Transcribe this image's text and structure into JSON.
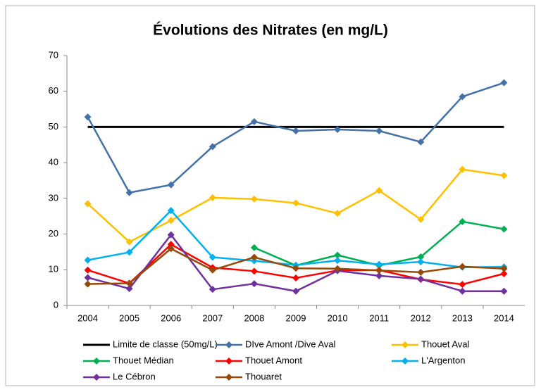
{
  "chart_data": {
    "type": "line",
    "title": "Évolutions des Nitrates (en mg/L)",
    "categories": [
      "2004",
      "2005",
      "2006",
      "2007",
      "2008",
      "2009",
      "2010",
      "2011",
      "2012",
      "2013",
      "2014"
    ],
    "ylim": [
      0,
      70
    ],
    "yticks": [
      0,
      10,
      20,
      30,
      40,
      50,
      60,
      70
    ],
    "grid": false,
    "legend": "bottom",
    "series": [
      {
        "name": "Limite de classe (50mg/L)",
        "color": "#000000",
        "marker": "none",
        "values": [
          50,
          50,
          50,
          50,
          50,
          50,
          50,
          50,
          50,
          50,
          50
        ]
      },
      {
        "name": "DIve Amont /Dive Aval",
        "color": "#4472a8",
        "marker": "diamond",
        "values": [
          52.8,
          31.6,
          33.8,
          44.5,
          51.5,
          48.9,
          49.3,
          48.9,
          45.8,
          58.5,
          62.4
        ]
      },
      {
        "name": "Thouet Aval",
        "color": "#ffc000",
        "marker": "diamond",
        "values": [
          28.5,
          17.8,
          23.8,
          30.2,
          29.8,
          28.7,
          25.8,
          32.2,
          24.1,
          38.1,
          36.4
        ]
      },
      {
        "name": "Thouet Médian",
        "color": "#00b050",
        "marker": "diamond",
        "values": [
          null,
          null,
          null,
          null,
          16.2,
          11.2,
          14.1,
          11.2,
          13.6,
          23.5,
          21.4
        ]
      },
      {
        "name": "Thouet Amont",
        "color": "#ff0000",
        "marker": "diamond",
        "values": [
          9.9,
          6.2,
          17.1,
          10.6,
          9.6,
          7.7,
          9.8,
          9.9,
          7.3,
          5.9,
          8.9
        ]
      },
      {
        "name": "L'Argenton",
        "color": "#00b0f0",
        "marker": "diamond",
        "values": [
          12.7,
          14.9,
          26.6,
          13.5,
          12.5,
          11.3,
          12.6,
          11.5,
          12.2,
          10.7,
          10.8
        ]
      },
      {
        "name": "Le Cébron",
        "color": "#7030a0",
        "marker": "diamond",
        "values": [
          7.8,
          4.7,
          19.8,
          4.5,
          6.1,
          4.0,
          9.7,
          8.3,
          7.4,
          4.0,
          4.0
        ]
      },
      {
        "name": "Thouaret",
        "color": "#984807",
        "marker": "diamond",
        "values": [
          6.0,
          6.2,
          15.9,
          9.9,
          13.5,
          10.4,
          10.3,
          9.8,
          9.3,
          10.9,
          10.3
        ]
      }
    ]
  }
}
